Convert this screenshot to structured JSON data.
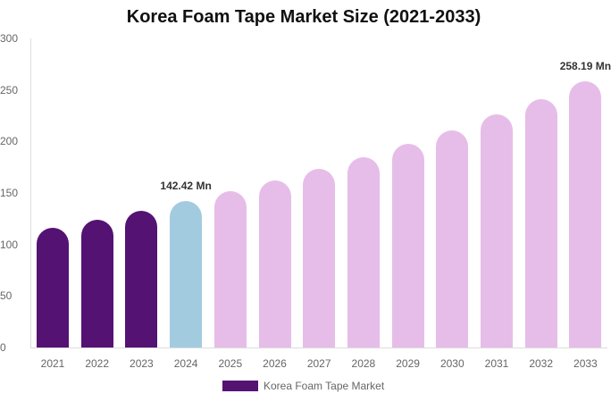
{
  "chart_data": {
    "type": "bar",
    "title": "Korea Foam Tape Market Size (2021-2033)",
    "xlabel": "",
    "ylabel": "",
    "ylim": [
      0,
      300
    ],
    "yticks": [
      0,
      50,
      100,
      150,
      200,
      250,
      300
    ],
    "categories": [
      "2021",
      "2022",
      "2023",
      "2024",
      "2025",
      "2026",
      "2027",
      "2028",
      "2029",
      "2030",
      "2031",
      "2032",
      "2033"
    ],
    "series": [
      {
        "name": "Korea Foam Tape Market",
        "values": [
          116.0,
          124.4,
          132.8,
          142.42,
          151.9,
          162.3,
          173.0,
          184.8,
          197.4,
          210.8,
          225.9,
          241.3,
          258.19
        ]
      }
    ],
    "bar_colors": [
      "#541273",
      "#541273",
      "#541273",
      "#a3cbe0",
      "#e6bde8",
      "#e6bde8",
      "#e6bde8",
      "#e6bde8",
      "#e6bde8",
      "#e6bde8",
      "#e6bde8",
      "#e6bde8",
      "#e6bde8"
    ],
    "annotations": [
      {
        "category": "2024",
        "text": "142.42 Mn"
      },
      {
        "category": "2033",
        "text": "258.19 Mn"
      }
    ],
    "grid": false,
    "legend_position": "bottom"
  },
  "legend": {
    "label": "Korea Foam Tape Market",
    "color": "#541273"
  }
}
